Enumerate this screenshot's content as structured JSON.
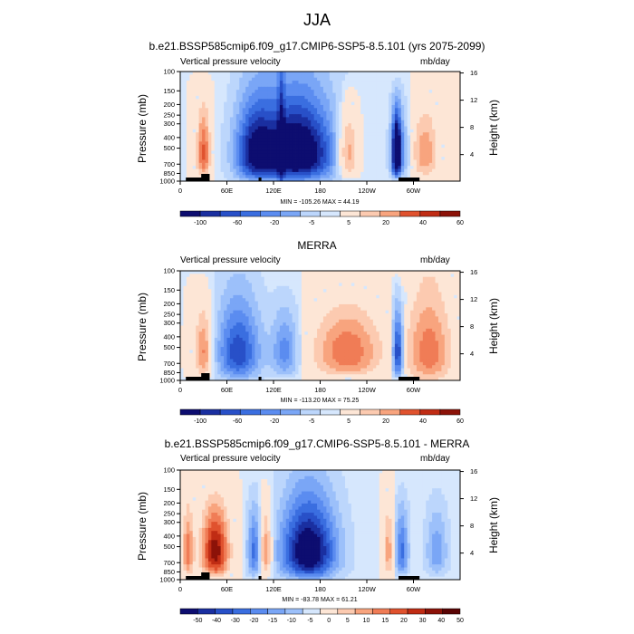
{
  "figure_title": "JJA",
  "chart_data": [
    {
      "type": "heatmap",
      "title": "b.e21.BSSP585cmip6.f09_g17.CMIP6-SSP5-8.5.101 (yrs 2075-2099)",
      "left_label": "Vertical pressure velocity",
      "right_label": "mb/day",
      "ylabel": "Pressure (mb)",
      "y2label": "Height (km)",
      "x_ticks": [
        "0",
        "60E",
        "120E",
        "180",
        "120W",
        "60W"
      ],
      "y_ticks": [
        "100",
        "150",
        "200",
        "250",
        "300",
        "400",
        "500",
        "700",
        "850",
        "1000"
      ],
      "y2_ticks": [
        "4",
        "8",
        "12",
        "16"
      ],
      "stats": "MIN = -105.26  MAX = 44.19",
      "colorbar_labels": [
        "-100",
        "-60",
        "-20",
        "-5",
        "5",
        "20",
        "40",
        "60"
      ],
      "min": -105.26,
      "max": 44.19
    },
    {
      "type": "heatmap",
      "title": "MERRA",
      "left_label": "Vertical pressure velocity",
      "right_label": "mb/day",
      "ylabel": "Pressure (mb)",
      "y2label": "Height (km)",
      "x_ticks": [
        "0",
        "60E",
        "120E",
        "180",
        "120W",
        "60W"
      ],
      "y_ticks": [
        "100",
        "150",
        "200",
        "250",
        "300",
        "400",
        "500",
        "700",
        "850",
        "1000"
      ],
      "y2_ticks": [
        "4",
        "8",
        "12",
        "16"
      ],
      "stats": "MIN = -113.20  MAX = 75.25",
      "colorbar_labels": [
        "-100",
        "-60",
        "-20",
        "-5",
        "5",
        "20",
        "40",
        "60"
      ],
      "min": -113.2,
      "max": 75.25
    },
    {
      "type": "heatmap",
      "title": "b.e21.BSSP585cmip6.f09_g17.CMIP6-SSP5-8.5.101 - MERRA",
      "left_label": "Vertical pressure velocity",
      "right_label": "mb/day",
      "ylabel": "Pressure (mb)",
      "y2label": "Height (km)",
      "x_ticks": [
        "0",
        "60E",
        "120E",
        "180",
        "120W",
        "60W"
      ],
      "y_ticks": [
        "100",
        "150",
        "200",
        "250",
        "300",
        "400",
        "500",
        "700",
        "850",
        "1000"
      ],
      "y2_ticks": [
        "4",
        "8",
        "12",
        "16"
      ],
      "stats": "MIN = -83.78  MAX = 61.21",
      "colorbar_labels": [
        "-50",
        "-40",
        "-30",
        "-20",
        "-15",
        "-10",
        "-5",
        "0",
        "5",
        "10",
        "15",
        "20",
        "30",
        "40",
        "50"
      ],
      "min": -83.78,
      "max": 61.21
    }
  ],
  "colors": {
    "diverging": [
      "#0d0d70",
      "#1a2fa0",
      "#2850c8",
      "#3a6ee0",
      "#5b8cf0",
      "#7aa6f6",
      "#9cc0fa",
      "#bcd6fc",
      "#d6e7fd",
      "#fde6d6",
      "#fccab0",
      "#f8a47e",
      "#f07c56",
      "#e0522e",
      "#c02c14",
      "#8c1208",
      "#5a0404"
    ]
  }
}
